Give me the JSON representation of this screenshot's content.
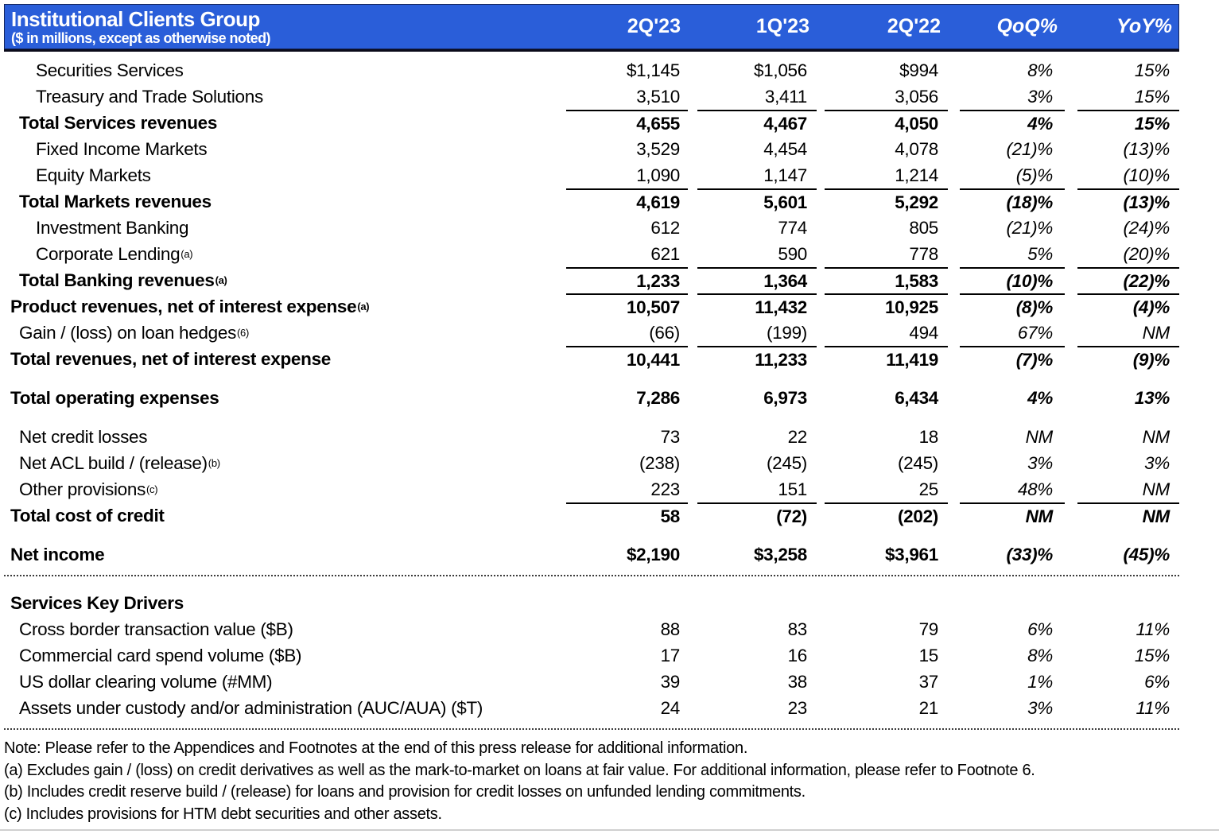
{
  "header": {
    "title": "Institutional Clients Group",
    "subtitle": "($ in millions, except as otherwise noted)",
    "accent_color": "#2a5ed9",
    "columns": [
      "2Q'23",
      "1Q'23",
      "2Q'22",
      "QoQ%",
      "YoY%"
    ]
  },
  "table": {
    "rows": [
      {
        "label": "Securities Services",
        "indent": 2,
        "values": [
          "$1,145",
          "$1,056",
          "$994",
          "8%",
          "15%"
        ]
      },
      {
        "label": "Treasury and Trade Solutions",
        "indent": 2,
        "values": [
          "3,510",
          "3,411",
          "3,056",
          "3%",
          "15%"
        ]
      },
      {
        "label": "Total Services revenues",
        "indent": 1,
        "bold": true,
        "rule": true,
        "values": [
          "4,655",
          "4,467",
          "4,050",
          "4%",
          "15%"
        ]
      },
      {
        "label": "Fixed Income Markets",
        "indent": 2,
        "values": [
          "3,529",
          "4,454",
          "4,078",
          "(21)%",
          "(13)%"
        ]
      },
      {
        "label": "Equity Markets",
        "indent": 2,
        "values": [
          "1,090",
          "1,147",
          "1,214",
          "(5)%",
          "(10)%"
        ]
      },
      {
        "label": "Total Markets revenues",
        "indent": 1,
        "bold": true,
        "rule": true,
        "values": [
          "4,619",
          "5,601",
          "5,292",
          "(18)%",
          "(13)%"
        ]
      },
      {
        "label": "Investment Banking",
        "indent": 2,
        "values": [
          "612",
          "774",
          "805",
          "(21)%",
          "(24)%"
        ]
      },
      {
        "label": "Corporate Lending",
        "sup": "(a)",
        "indent": 2,
        "values": [
          "621",
          "590",
          "778",
          "5%",
          "(20)%"
        ]
      },
      {
        "label": "Total Banking revenues",
        "sup": "(a)",
        "indent": 1,
        "bold": true,
        "rule": true,
        "values": [
          "1,233",
          "1,364",
          "1,583",
          "(10)%",
          "(22)%"
        ]
      },
      {
        "label": "Product revenues, net of interest expense",
        "sup": "(a)",
        "indent": 0,
        "bold": true,
        "rule": true,
        "values": [
          "10,507",
          "11,432",
          "10,925",
          "(8)%",
          "(4)%"
        ]
      },
      {
        "label": "Gain / (loss) on loan hedges",
        "sup": "(6)",
        "indent": 1,
        "values": [
          "(66)",
          "(199)",
          "494",
          "67%",
          "NM"
        ]
      },
      {
        "label": "Total revenues, net of interest expense",
        "indent": 0,
        "bold": true,
        "rule": true,
        "values": [
          "10,441",
          "11,233",
          "11,419",
          "(7)%",
          "(9)%"
        ]
      },
      {
        "label": "Total operating expenses",
        "indent": 0,
        "bold": true,
        "gap": true,
        "values": [
          "7,286",
          "6,973",
          "6,434",
          "4%",
          "13%"
        ]
      },
      {
        "label": "Net credit losses",
        "indent": 1,
        "gap": true,
        "values": [
          "73",
          "22",
          "18",
          "NM",
          "NM"
        ]
      },
      {
        "label": "Net ACL build / (release)",
        "sup": "(b)",
        "indent": 1,
        "values": [
          "(238)",
          "(245)",
          "(245)",
          "3%",
          "3%"
        ]
      },
      {
        "label": "Other provisions",
        "sup": "(c)",
        "indent": 1,
        "values": [
          "223",
          "151",
          "25",
          "48%",
          "NM"
        ]
      },
      {
        "label": "Total cost of credit",
        "indent": 0,
        "bold": true,
        "rule": true,
        "values": [
          "58",
          "(72)",
          "(202)",
          "NM",
          "NM"
        ]
      },
      {
        "label": "Net income",
        "indent": 0,
        "bold": true,
        "gap": true,
        "values": [
          "$2,190",
          "$3,258",
          "$3,961",
          "(33)%",
          "(45)%"
        ]
      }
    ]
  },
  "key_drivers": {
    "heading": "Services Key Drivers",
    "rows": [
      {
        "label": "Cross border transaction value ($B)",
        "indent": 1,
        "values": [
          "88",
          "83",
          "79",
          "6%",
          "11%"
        ]
      },
      {
        "label": "Commercial card spend volume ($B)",
        "indent": 1,
        "values": [
          "17",
          "16",
          "15",
          "8%",
          "15%"
        ]
      },
      {
        "label": "US dollar clearing volume (#MM)",
        "indent": 1,
        "values": [
          "39",
          "38",
          "37",
          "1%",
          "6%"
        ]
      },
      {
        "label": "Assets under custody and/or administration (AUC/AUA) ($T)",
        "indent": 1,
        "values": [
          "24",
          "23",
          "21",
          "3%",
          "11%"
        ]
      }
    ]
  },
  "footnotes": [
    "Note:  Please refer to the Appendices and Footnotes at the end of this press release for additional information.",
    "(a) Excludes gain / (loss) on credit derivatives as well as the mark-to-market on loans at fair value. For additional information, please refer to Footnote 6.",
    "(b) Includes credit reserve build / (release) for loans and provision for credit losses on unfunded lending commitments.",
    "(c) Includes provisions for HTM debt securities and other assets."
  ]
}
